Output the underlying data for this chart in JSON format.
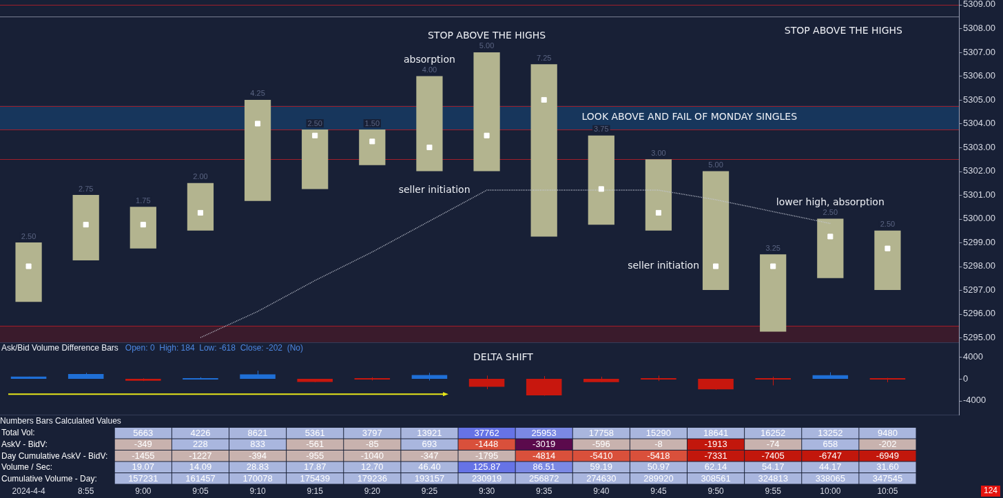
{
  "chart_data": [
    {
      "type": "bar",
      "categories": [
        "2024-4-4",
        "8:55",
        "9:00",
        "9:05",
        "9:10",
        "9:15",
        "9:20",
        "9:25",
        "9:30",
        "9:35",
        "9:40",
        "9:45",
        "9:50",
        "9:55",
        "10:00",
        "10:05"
      ],
      "series": [
        {
          "type": "bar",
          "color": "#b3b48f",
          "base": [
            5296.5,
            5298.25,
            5298.75,
            5299.5,
            5300.75,
            5301.25,
            5302.25,
            5302.0,
            5302.0,
            5299.25,
            5299.75,
            5299.5,
            5297.0,
            5295.25,
            5297.5,
            5297.0
          ],
          "values": [
            2.5,
            2.75,
            1.75,
            2.0,
            4.25,
            2.5,
            1.5,
            4.0,
            5.0,
            7.25,
            3.75,
            3.0,
            5.0,
            3.25,
            2.5,
            2.5
          ],
          "value_labels": [
            "2.50",
            "2.75",
            "1.75",
            "2.00",
            "4.25",
            "2.50",
            "1.50",
            "4.00",
            "5.00",
            "7.25",
            "3.75",
            "3.00",
            "5.00",
            "3.25",
            "2.50",
            "2.50"
          ]
        },
        {
          "type": "scatter",
          "color": "#ffffff",
          "marker": "square",
          "values": [
            5298.0,
            5299.75,
            5299.75,
            5300.25,
            5304.0,
            5303.5,
            5303.25,
            5303.0,
            5303.5,
            5305.0,
            5301.25,
            5300.25,
            5298.0,
            5298.0,
            5299.25,
            5298.75
          ]
        },
        {
          "type": "line",
          "color": "#c4c8d4",
          "line_style": "dotted",
          "marker": "none",
          "values": [
            null,
            null,
            null,
            5295.0,
            5296.1,
            5297.4,
            5298.6,
            5299.9,
            5301.2,
            5301.2,
            5301.2,
            5301.2,
            5300.8,
            5300.3,
            5299.8,
            null
          ]
        }
      ],
      "ylim": [
        5294.8,
        5309.2
      ],
      "yticks": [
        {
          "value": 5295,
          "label": "5295.00"
        },
        {
          "value": 5296,
          "label": "5296.00"
        },
        {
          "value": 5297,
          "label": "5297.00"
        },
        {
          "value": 5298,
          "label": "5298.00"
        },
        {
          "value": 5299,
          "label": "5299.00"
        },
        {
          "value": 5300,
          "label": "5300.00"
        },
        {
          "value": 5301,
          "label": "5301.00"
        },
        {
          "value": 5302,
          "label": "5302.00"
        },
        {
          "value": 5303,
          "label": "5303.00"
        },
        {
          "value": 5304,
          "label": "5304.00"
        },
        {
          "value": 5305,
          "label": "5305.00"
        },
        {
          "value": 5306,
          "label": "5306.00"
        },
        {
          "value": 5307,
          "label": "5307.00"
        },
        {
          "value": 5308,
          "label": "5308.00"
        },
        {
          "value": 5309,
          "label": "5309.00"
        }
      ],
      "tick_labels": "y",
      "bands": [
        {
          "axis": "y",
          "from": 5303.75,
          "to": 5304.75,
          "label": "LOOK ABOVE AND FAIL OF MONDAY SINGLES",
          "color": "#17365c"
        },
        {
          "axis": "y",
          "from": 5294.8,
          "to": 5295.5,
          "color": "#3a1b2c"
        }
      ],
      "ref_lines": [
        {
          "axis": "y",
          "value": 5309,
          "color": "#a01e2a"
        },
        {
          "axis": "y",
          "value": 5308.5,
          "color": "#7a7f92"
        },
        {
          "axis": "y",
          "value": 5304.75,
          "color": "#a01e2a"
        },
        {
          "axis": "y",
          "value": 5303.75,
          "color": "#a01e2a"
        },
        {
          "axis": "y",
          "value": 5302.5,
          "color": "#a01e2a"
        },
        {
          "axis": "y",
          "value": 5295.5,
          "color": "#a01e2a"
        }
      ],
      "annotations": [
        {
          "text": "STOP ABOVE THE HIGHS",
          "x": "9:30",
          "y": 5307.0
        },
        "STOP ABOVE THE HIGHS",
        {
          "text": "absorption",
          "x": "9:25",
          "y": 5306.0
        },
        {
          "text": "seller initiation",
          "x": "9:30",
          "y": 5301.2
        },
        {
          "text": "seller initiation",
          "x": "9:50",
          "y": 5298.0
        },
        {
          "text": "lower high, absorption",
          "x": "10:00",
          "y": 5300.0
        }
      ]
    },
    {
      "type": "candlestick",
      "title": "Ask/Bid Volume Difference Bars",
      "subtitle": "Open: 0  High: 184  Low: -618  Close: -202  (No)",
      "categories": [
        "2024-4-4",
        "8:55",
        "9:00",
        "9:05",
        "9:10",
        "9:15",
        "9:20",
        "9:25",
        "9:30",
        "9:35",
        "9:40",
        "9:45",
        "9:50",
        "9:55",
        "10:00",
        "10:05"
      ],
      "ohlc": [
        [
          0,
          400,
          0,
          400
        ],
        [
          0,
          1100,
          0,
          900
        ],
        [
          0,
          100,
          -400,
          -349
        ],
        [
          0,
          300,
          -100,
          228
        ],
        [
          0,
          1500,
          0,
          833
        ],
        [
          0,
          0,
          -600,
          -561
        ],
        [
          0,
          300,
          -300,
          -85
        ],
        [
          0,
          1100,
          -300,
          693
        ],
        [
          0,
          600,
          -1900,
          -1448
        ],
        [
          0,
          500,
          -3100,
          -3019
        ],
        [
          0,
          400,
          -600,
          -596
        ],
        [
          0,
          600,
          -400,
          -8
        ],
        [
          0,
          0,
          -2000,
          -1913
        ],
        [
          0,
          400,
          -1200,
          -74
        ],
        [
          0,
          1200,
          0,
          658
        ],
        [
          0,
          184,
          -618,
          -202
        ]
      ],
      "colors": [
        "#1f6fd6",
        "#1f6fd6",
        "#c8170e",
        "#1f6fd6",
        "#1f6fd6",
        "#c8170e",
        "#c8170e",
        "#1f6fd6",
        "#c8170e",
        "#c8170e",
        "#c8170e",
        "#c8170e",
        "#c8170e",
        "#c8170e",
        "#1f6fd6",
        "#c8170e"
      ],
      "ylim": [
        -6700,
        6700
      ],
      "yticks": [
        -4000,
        0,
        4000
      ],
      "tick_labels": "y",
      "annotations": [
        {
          "text": "DELTA SHIFT",
          "x": "9:30",
          "y": 600
        }
      ]
    },
    {
      "type": "heatmap",
      "title": "Numbers Bars Calculated Values",
      "categories": [
        "2024-4-4",
        "8:55",
        "9:00",
        "9:05",
        "9:10",
        "9:15",
        "9:20",
        "9:25",
        "9:30",
        "9:35",
        "9:40",
        "9:45",
        "9:50",
        "9:55",
        "10:00",
        "10:05"
      ],
      "y_categories": [
        "Total Vol:",
        "AskV - BidV:",
        "Day Cumulative AskV - BidV:",
        "Volume / Sec:",
        "Cumulative Volume - Day:"
      ],
      "cells": [
        [
          null,
          null,
          5663,
          4226,
          8621,
          5361,
          3797,
          13921,
          37762,
          25953,
          17758,
          15290,
          18641,
          16252,
          13252,
          9480
        ],
        [
          null,
          null,
          -349,
          228,
          833,
          -561,
          -85,
          693,
          -1448,
          -3019,
          -596,
          -8,
          -1913,
          -74,
          658,
          -202
        ],
        [
          null,
          null,
          -1455,
          -1227,
          -394,
          -955,
          -1040,
          -347,
          -1795,
          -4814,
          -5410,
          -5418,
          -7331,
          -7405,
          -6747,
          -6949
        ],
        [
          null,
          null,
          19.07,
          14.09,
          28.83,
          17.87,
          12.7,
          46.4,
          125.87,
          86.51,
          59.19,
          50.97,
          62.14,
          54.17,
          44.17,
          31.6
        ],
        [
          null,
          null,
          157231,
          161457,
          170078,
          175439,
          179236,
          193157,
          230919,
          256872,
          274630,
          289920,
          308561,
          324813,
          338065,
          347545
        ]
      ],
      "cell_labels": [
        [
          null,
          null,
          "5663",
          "4226",
          "8621",
          "5361",
          "3797",
          "13921",
          "37762",
          "25953",
          "17758",
          "15290",
          "18641",
          "16252",
          "13252",
          "9480"
        ],
        [
          null,
          null,
          "-349",
          "228",
          "833",
          "-561",
          "-85",
          "693",
          "-1448",
          "-3019",
          "-596",
          "-8",
          "-1913",
          "-74",
          "658",
          "-202"
        ],
        [
          null,
          null,
          "-1455",
          "-1227",
          "-394",
          "-955",
          "-1040",
          "-347",
          "-1795",
          "-4814",
          "-5410",
          "-5418",
          "-7331",
          "-7405",
          "-6747",
          "-6949"
        ],
        [
          null,
          null,
          "19.07",
          "14.09",
          "28.83",
          "17.87",
          "12.70",
          "46.40",
          "125.87",
          "86.51",
          "59.19",
          "50.97",
          "62.14",
          "54.17",
          "44.17",
          "31.60"
        ],
        [
          null,
          null,
          "157231",
          "161457",
          "170078",
          "175439",
          "179236",
          "193157",
          "230919",
          "256872",
          "274630",
          "289920",
          "308561",
          "324813",
          "338065",
          "347545"
        ]
      ],
      "annotations": [
        "124"
      ]
    }
  ]
}
